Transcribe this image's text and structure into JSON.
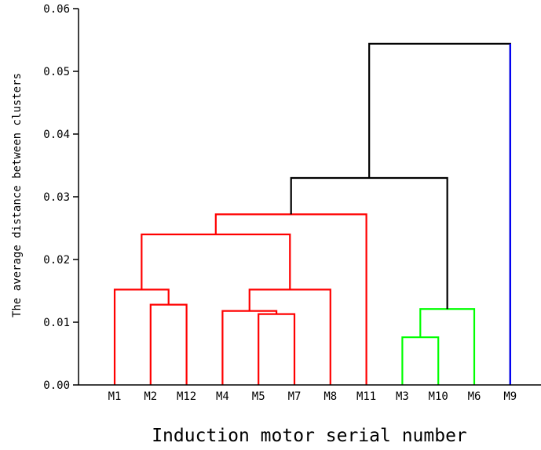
{
  "chart_data": {
    "type": "dendrogram",
    "xlabel": "Induction motor serial number",
    "ylabel": "The average distance between clusters",
    "ylim": [
      0,
      0.06
    ],
    "yticks": [
      {
        "value": 0.0,
        "label": "0.00"
      },
      {
        "value": 0.01,
        "label": "0.01"
      },
      {
        "value": 0.02,
        "label": "0.02"
      },
      {
        "value": 0.03,
        "label": "0.03"
      },
      {
        "value": 0.04,
        "label": "0.04"
      },
      {
        "value": 0.05,
        "label": "0.05"
      },
      {
        "value": 0.06,
        "label": "0.06"
      }
    ],
    "leaves": [
      "M1",
      "M2",
      "M12",
      "M4",
      "M5",
      "M7",
      "M8",
      "M11",
      "M3",
      "M10",
      "M6",
      "M9"
    ],
    "colors": {
      "red": "#ff0000",
      "green": "#00ff00",
      "blue": "#0000ff",
      "black": "#000000"
    },
    "leaf_colors": [
      "red",
      "red",
      "red",
      "red",
      "red",
      "red",
      "red",
      "red",
      "green",
      "green",
      "green",
      "blue"
    ],
    "merges": [
      {
        "left": "M5",
        "right": "M7",
        "height": 0.0113,
        "color": "red"
      },
      {
        "left": "M4",
        "right": 0,
        "height": 0.0118,
        "color": "red"
      },
      {
        "left": "M2",
        "right": "M12",
        "height": 0.0128,
        "color": "red"
      },
      {
        "left": 1,
        "right": "M8",
        "height": 0.0152,
        "color": "red"
      },
      {
        "left": "M1",
        "right": 2,
        "height": 0.0152,
        "color": "red"
      },
      {
        "left": 4,
        "right": 3,
        "height": 0.024,
        "color": "red"
      },
      {
        "left": 5,
        "right": "M11",
        "height": 0.0272,
        "color": "red"
      },
      {
        "left": "M3",
        "right": "M10",
        "height": 0.0076,
        "color": "green"
      },
      {
        "left": 7,
        "right": "M6",
        "height": 0.0121,
        "color": "green"
      },
      {
        "left": 6,
        "right": 8,
        "height": 0.033,
        "color": "black"
      },
      {
        "left": 9,
        "right": "M9",
        "height": 0.0544,
        "color": "black"
      }
    ]
  }
}
